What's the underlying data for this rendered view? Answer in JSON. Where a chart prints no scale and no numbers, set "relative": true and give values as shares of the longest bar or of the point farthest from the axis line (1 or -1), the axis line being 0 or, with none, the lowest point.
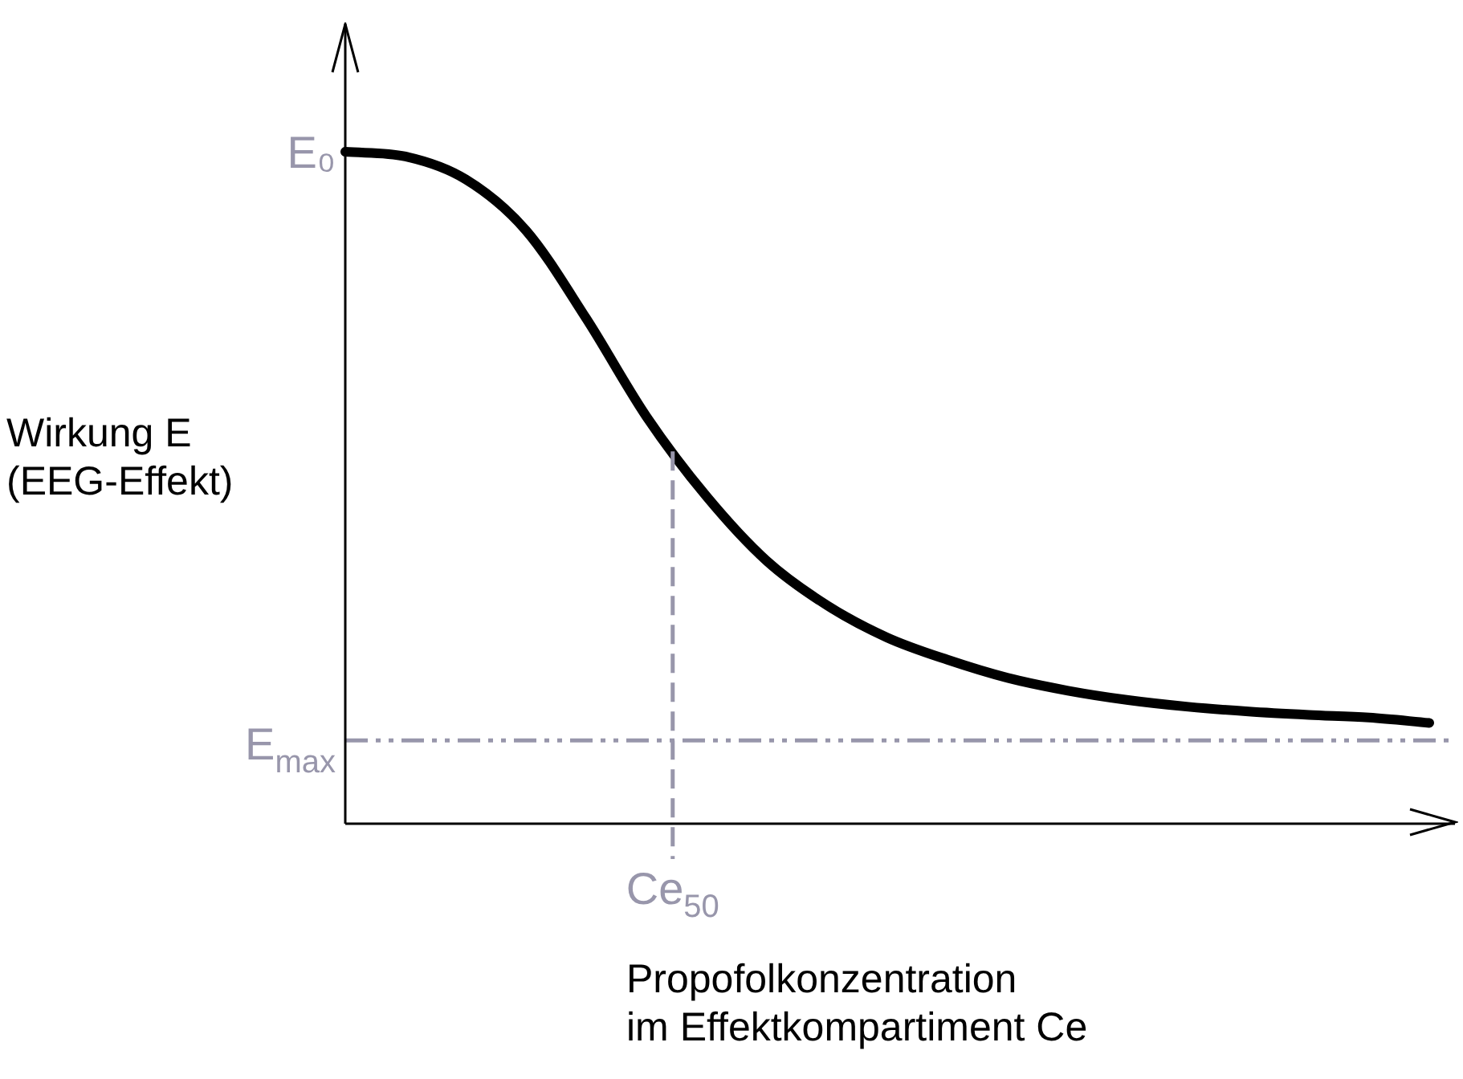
{
  "chart_data": {
    "type": "line",
    "relative": true,
    "xlabel": "Propofolkonzentration\nim Effektkompartiment Ce",
    "ylabel": "Wirkung E\n(EEG-Effekt)",
    "categories": [
      null,
      null,
      null,
      null,
      null,
      null,
      null,
      null,
      null,
      null,
      null,
      null,
      null,
      null,
      null,
      null,
      null,
      null,
      null
    ],
    "series": [
      {
        "color": "#000000",
        "values": [
          1,
          0.993,
          0.959,
          0.883,
          0.752,
          0.606,
          0.487,
          0.391,
          0.325,
          0.277,
          0.244,
          0.217,
          0.198,
          0.184,
          0.174,
          0.167,
          0.162,
          0.158,
          0.15
        ]
      }
    ],
    "ref_lines": [
      {
        "axis": "y",
        "value": 0.124,
        "label": "E$_{max}$",
        "color": "#9896ab",
        "line_style": "dashed"
      }
    ],
    "annotations": [
      "E₀",
      {
        "text": "Ce$_{50}$",
        "y": 0.554
      }
    ],
    "marker": "none",
    "line_style": "solid",
    "grid": false,
    "legend": false
  }
}
